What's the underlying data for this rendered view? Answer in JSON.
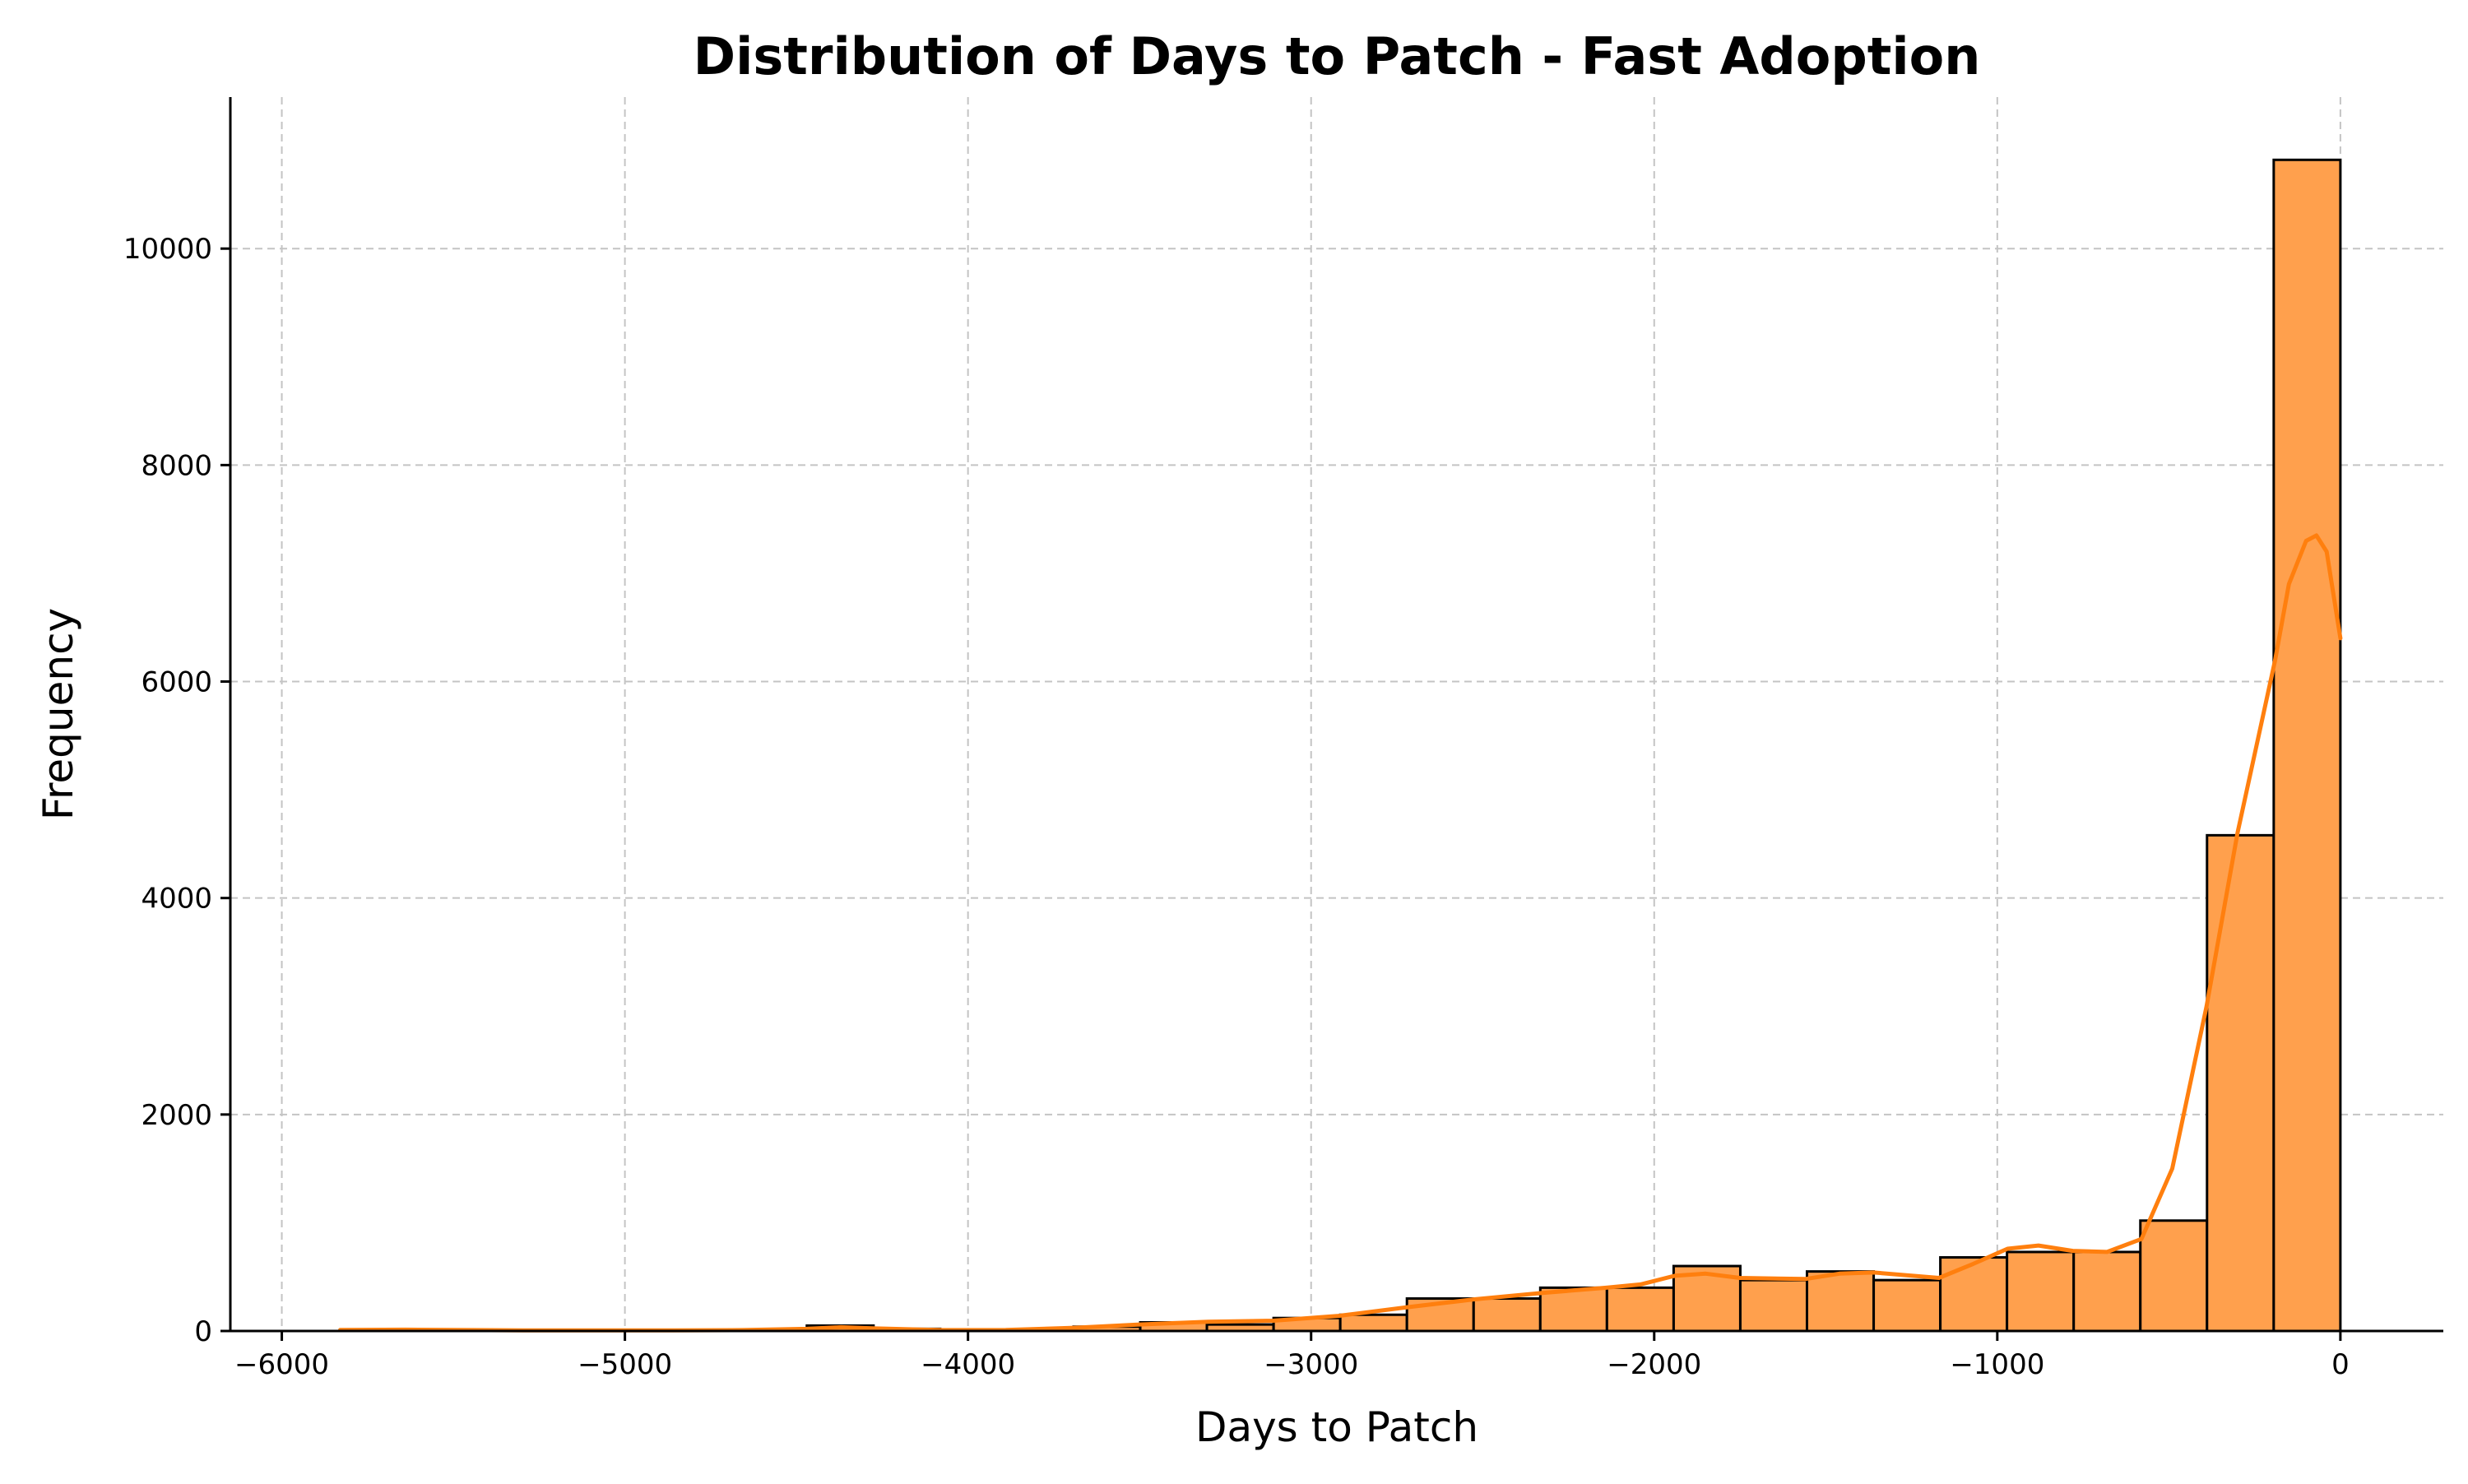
{
  "chart_data": {
    "type": "bar",
    "title": "Distribution of Days to Patch - Fast Adoption",
    "xlabel": "Days to Patch",
    "ylabel": "Frequency",
    "xlim": [
      -6150,
      300
    ],
    "ylim": [
      0,
      11400
    ],
    "x_ticks": [
      -6000,
      -5000,
      -4000,
      -3000,
      -2000,
      -1000,
      0
    ],
    "x_tick_labels": [
      "−6000",
      "−5000",
      "−4000",
      "−3000",
      "−2000",
      "−1000",
      "0"
    ],
    "y_ticks": [
      0,
      2000,
      4000,
      6000,
      8000,
      10000
    ],
    "y_tick_labels": [
      "0",
      "2000",
      "4000",
      "6000",
      "8000",
      "10000"
    ],
    "grid": true,
    "bar_color": "#ffa04d",
    "kde_color": "#ff7f0e",
    "bin_width": 194.3,
    "bins": [
      {
        "start": -5830,
        "end": -5635.7,
        "count": 10
      },
      {
        "start": -5635.7,
        "end": -5441.3,
        "count": 5
      },
      {
        "start": -5441.3,
        "end": -5247,
        "count": 5
      },
      {
        "start": -5247,
        "end": -5052.7,
        "count": 5
      },
      {
        "start": -5052.7,
        "end": -4858.3,
        "count": 5
      },
      {
        "start": -4858.3,
        "end": -4664,
        "count": 5
      },
      {
        "start": -4664,
        "end": -4469.7,
        "count": 5
      },
      {
        "start": -4469.7,
        "end": -4275.3,
        "count": 50
      },
      {
        "start": -4275.3,
        "end": -4081,
        "count": 20
      },
      {
        "start": -4081,
        "end": -3886.7,
        "count": 5
      },
      {
        "start": -3886.7,
        "end": -3692.3,
        "count": 10
      },
      {
        "start": -3692.3,
        "end": -3498,
        "count": 40
      },
      {
        "start": -3498,
        "end": -3303.7,
        "count": 80
      },
      {
        "start": -3303.7,
        "end": -3109.3,
        "count": 60
      },
      {
        "start": -3109.3,
        "end": -2915,
        "count": 120
      },
      {
        "start": -2915,
        "end": -2720.7,
        "count": 150
      },
      {
        "start": -2720.7,
        "end": -2526.3,
        "count": 300
      },
      {
        "start": -2526.3,
        "end": -2332,
        "count": 300
      },
      {
        "start": -2332,
        "end": -2137.7,
        "count": 400
      },
      {
        "start": -2137.7,
        "end": -1943.3,
        "count": 400
      },
      {
        "start": -1943.3,
        "end": -1749,
        "count": 600
      },
      {
        "start": -1749,
        "end": -1554.7,
        "count": 470
      },
      {
        "start": -1554.7,
        "end": -1360.3,
        "count": 550
      },
      {
        "start": -1360.3,
        "end": -1166,
        "count": 470
      },
      {
        "start": -1166,
        "end": -971.7,
        "count": 680
      },
      {
        "start": -971.7,
        "end": -777.3,
        "count": 730
      },
      {
        "start": -777.3,
        "end": -583,
        "count": 730
      },
      {
        "start": -583,
        "end": -388.7,
        "count": 1020
      },
      {
        "start": -388.7,
        "end": -194.3,
        "count": 4580
      },
      {
        "start": -194.3,
        "end": 0,
        "count": 10820
      }
    ],
    "kde": {
      "x": [
        -5830,
        -5640,
        -5440,
        -5250,
        -5050,
        -4860,
        -4660,
        -4470,
        -4370,
        -4280,
        -4080,
        -3890,
        -3690,
        -3500,
        -3300,
        -3110,
        -2920,
        -2720,
        -2530,
        -2330,
        -2140,
        -2040,
        -1940,
        -1850,
        -1750,
        -1560,
        -1460,
        -1360,
        -1170,
        -1070,
        -970,
        -880,
        -780,
        -680,
        -580,
        -490,
        -390,
        -300,
        -190,
        -150,
        -100,
        -70,
        -40,
        0
      ],
      "y": [
        10,
        12,
        8,
        5,
        5,
        5,
        8,
        20,
        35,
        25,
        8,
        10,
        30,
        60,
        85,
        95,
        140,
        220,
        290,
        350,
        400,
        430,
        510,
        530,
        490,
        480,
        530,
        540,
        490,
        620,
        760,
        790,
        740,
        730,
        850,
        1500,
        3000,
        4600,
        6200,
        6900,
        7300,
        7350,
        7200,
        6400
      ]
    }
  }
}
